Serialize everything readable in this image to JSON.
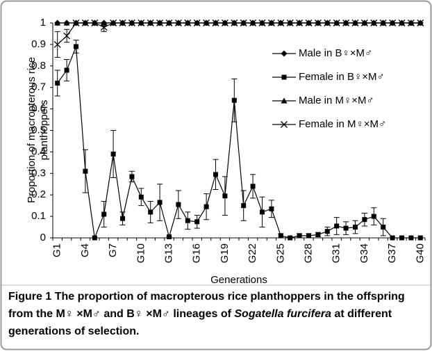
{
  "chart_data": {
    "type": "line",
    "ylabel": [
      "Proportion of macropterous rice",
      "planthoppers"
    ],
    "xlabel": "Generations",
    "categories": [
      "G1",
      null,
      null,
      "G4",
      null,
      null,
      "G7",
      null,
      null,
      "G10",
      null,
      null,
      "G13",
      null,
      null,
      "G16",
      null,
      null,
      "G19",
      null,
      null,
      "G22",
      null,
      null,
      "G25",
      null,
      null,
      "G28",
      null,
      null,
      "G31",
      null,
      null,
      "G34",
      null,
      null,
      "G37",
      null,
      null,
      "G40"
    ],
    "ylim": [
      0,
      1
    ],
    "yticks": [
      0,
      0.1,
      0.2,
      0.3,
      0.4,
      0.5,
      0.6,
      0.7,
      0.8,
      0.9,
      1
    ],
    "legend": "right",
    "series": [
      {
        "name": "Male in B♀×M♂",
        "color": "#000000",
        "marker": "diamond",
        "values": [
          1,
          1,
          1,
          1,
          1,
          1,
          1,
          1,
          1,
          1,
          1,
          1,
          1,
          1,
          1,
          1,
          1,
          1,
          1,
          1,
          1,
          1,
          1,
          1,
          1,
          1,
          1,
          1,
          1,
          1,
          1,
          1,
          1,
          1,
          1,
          1,
          1,
          1,
          1,
          1
        ]
      },
      {
        "name": "Female in B♀×M♂",
        "color": "#000000",
        "marker": "square",
        "values": [
          0.72,
          0.78,
          0.89,
          0.31,
          0,
          0.11,
          0.39,
          0.09,
          0.285,
          0.19,
          0.12,
          0.165,
          0.005,
          0.155,
          0.08,
          0.075,
          0.145,
          0.295,
          0.195,
          0.64,
          0.15,
          0.24,
          0.12,
          0.135,
          0.01,
          0,
          0.01,
          0.01,
          0.015,
          0.03,
          0.055,
          0.045,
          0.05,
          0.085,
          0.1,
          0.05,
          0,
          0,
          0,
          0
        ],
        "errors": [
          0.06,
          0.05,
          0.03,
          0.1,
          0,
          0.06,
          0.11,
          0.03,
          0.025,
          0.04,
          0.05,
          0.085,
          0,
          0.065,
          0.04,
          0.03,
          0.06,
          0.07,
          0.09,
          0.1,
          0.07,
          0.055,
          0.07,
          0.04,
          0.01,
          0,
          0.01,
          0.01,
          0.01,
          0.02,
          0.04,
          0.03,
          0.03,
          0.03,
          0.04,
          0.04,
          0,
          0,
          0,
          0
        ]
      },
      {
        "name": "Male in M♀×M♂",
        "color": "#000000",
        "marker": "triangle",
        "values": [
          1,
          1,
          1,
          1,
          1,
          1,
          1,
          1,
          1,
          1,
          1,
          1,
          1,
          1,
          1,
          1,
          1,
          1,
          1,
          1,
          1,
          1,
          1,
          1,
          1,
          1,
          1,
          1,
          1,
          1,
          1,
          1,
          1,
          1,
          1,
          1,
          1,
          1,
          1,
          1
        ]
      },
      {
        "name": "Female in M♀×M♂",
        "color": "#000000",
        "marker": "x",
        "values": [
          0.9,
          0.94,
          1,
          1,
          1,
          0.98,
          1,
          1,
          1,
          1,
          1,
          1,
          1,
          1,
          1,
          1,
          1,
          1,
          1,
          1,
          1,
          1,
          1,
          1,
          1,
          1,
          1,
          1,
          1,
          1,
          1,
          1,
          1,
          1,
          1,
          1,
          1,
          1,
          1,
          1
        ],
        "errors": [
          0.06,
          0.03,
          0,
          0,
          0,
          0.02,
          0,
          0,
          0,
          0,
          0,
          0,
          0,
          0,
          0,
          0,
          0,
          0,
          0,
          0,
          0,
          0,
          0,
          0,
          0,
          0,
          0,
          0,
          0,
          0,
          0,
          0,
          0,
          0,
          0,
          0,
          0,
          0,
          0,
          0
        ]
      }
    ]
  },
  "caption": {
    "label": "Figure 1",
    "text": "The proportion of macropterous rice planthoppers in the offspring from the M♀ ×M♂ and B♀ ×M♂ lineages of",
    "species": "Sogatella furcifera",
    "rest": "at different generations of selection."
  }
}
